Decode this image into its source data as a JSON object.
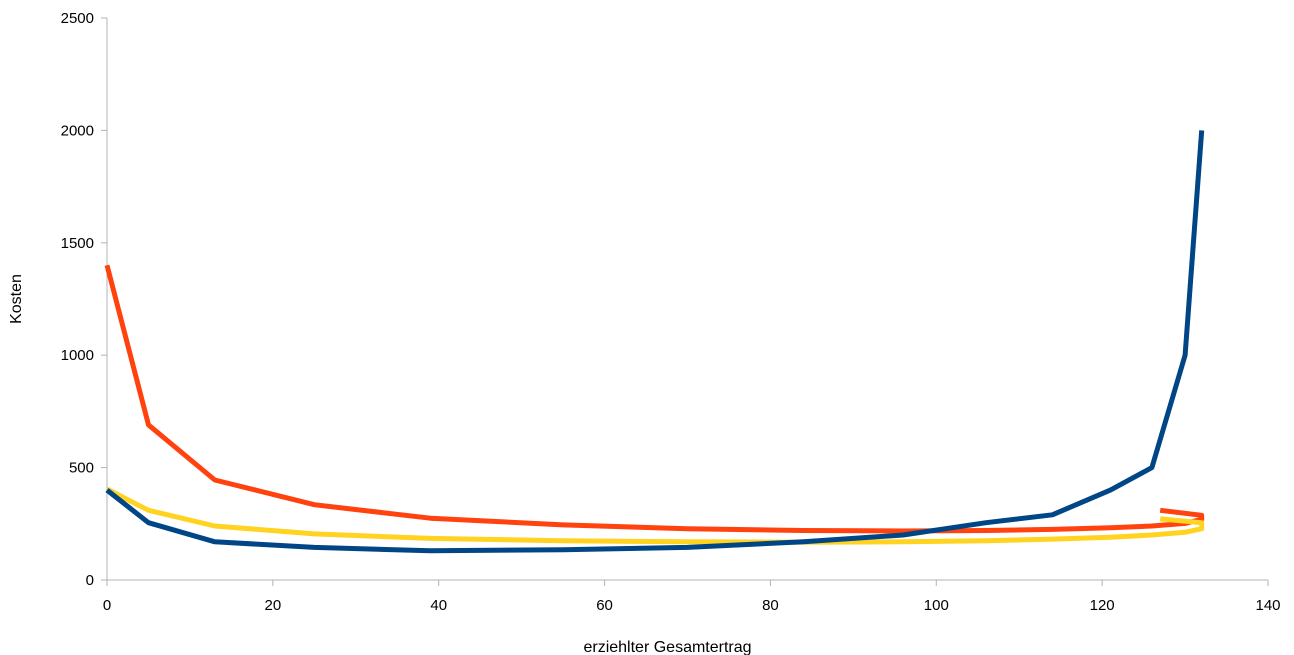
{
  "chart_data": {
    "type": "line",
    "title": "",
    "xlabel": "erziehlter Gesamtertrag",
    "ylabel": "Kosten",
    "xlim": [
      0,
      140
    ],
    "ylim": [
      0,
      2500
    ],
    "x_ticks": [
      0,
      20,
      40,
      60,
      80,
      100,
      120,
      140
    ],
    "y_ticks": [
      0,
      500,
      1000,
      1500,
      2000,
      2500
    ],
    "x_tick_labels": [
      "0",
      "20",
      "40",
      "60",
      "80",
      "100",
      "120",
      "140"
    ],
    "y_tick_labels": [
      "0",
      "500",
      "1000",
      "1500",
      "2000",
      "2500"
    ],
    "grid": false,
    "legend": "none",
    "series": [
      {
        "color": "#ff420e",
        "points": [
          [
            0,
            1400
          ],
          [
            5,
            690
          ],
          [
            13,
            445
          ],
          [
            25,
            335
          ],
          [
            39,
            275
          ],
          [
            55,
            245
          ],
          [
            70,
            228
          ],
          [
            84,
            220
          ],
          [
            96,
            218
          ],
          [
            106,
            220
          ],
          [
            114,
            225
          ],
          [
            121,
            232
          ],
          [
            126,
            240
          ],
          [
            130,
            252
          ],
          [
            132,
            270
          ],
          [
            132,
            288
          ],
          [
            127,
            310
          ]
        ]
      },
      {
        "color": "#ffd320",
        "points": [
          [
            0,
            405
          ],
          [
            5,
            310
          ],
          [
            13,
            240
          ],
          [
            25,
            205
          ],
          [
            39,
            185
          ],
          [
            55,
            175
          ],
          [
            70,
            170
          ],
          [
            84,
            168
          ],
          [
            96,
            170
          ],
          [
            106,
            175
          ],
          [
            114,
            182
          ],
          [
            121,
            190
          ],
          [
            126,
            200
          ],
          [
            130,
            212
          ],
          [
            132,
            228
          ],
          [
            132,
            255
          ],
          [
            127,
            272
          ]
        ]
      },
      {
        "color": "#004586",
        "points": [
          [
            0,
            400
          ],
          [
            5,
            255
          ],
          [
            13,
            170
          ],
          [
            25,
            145
          ],
          [
            39,
            130
          ],
          [
            55,
            135
          ],
          [
            70,
            145
          ],
          [
            84,
            170
          ],
          [
            96,
            200
          ],
          [
            106,
            255
          ],
          [
            114,
            290
          ],
          [
            121,
            400
          ],
          [
            126,
            500
          ],
          [
            130,
            1000
          ],
          [
            132,
            2000
          ]
        ]
      }
    ]
  }
}
